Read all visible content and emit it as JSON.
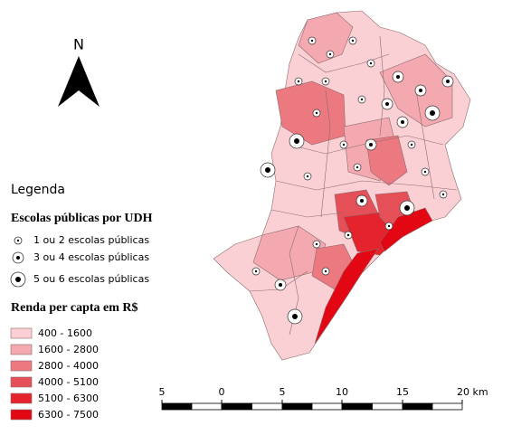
{
  "north": "N",
  "legend": {
    "title": "Legenda",
    "schools": {
      "title": "Escolas públicas por UDH",
      "items": [
        "1 ou 2 escolas públicas",
        "3 ou 4  escolas públicas",
        "5 ou 6 escolas públicas"
      ]
    },
    "income": {
      "title": "Renda per capta em R$",
      "items": [
        {
          "label": "400 - 1600",
          "color": "#fbd0d5"
        },
        {
          "label": "1600 - 2800",
          "color": "#f4a9b0"
        },
        {
          "label": "2800 - 4000",
          "color": "#ec7880"
        },
        {
          "label": "4000 - 5100",
          "color": "#e54f58"
        },
        {
          "label": "5100 - 6300",
          "color": "#e5232d"
        },
        {
          "label": "6300 - 7500",
          "color": "#e30613"
        }
      ]
    }
  },
  "scale_bar": {
    "labels": [
      "5",
      "0",
      "5",
      "10",
      "15",
      "20 km"
    ]
  }
}
